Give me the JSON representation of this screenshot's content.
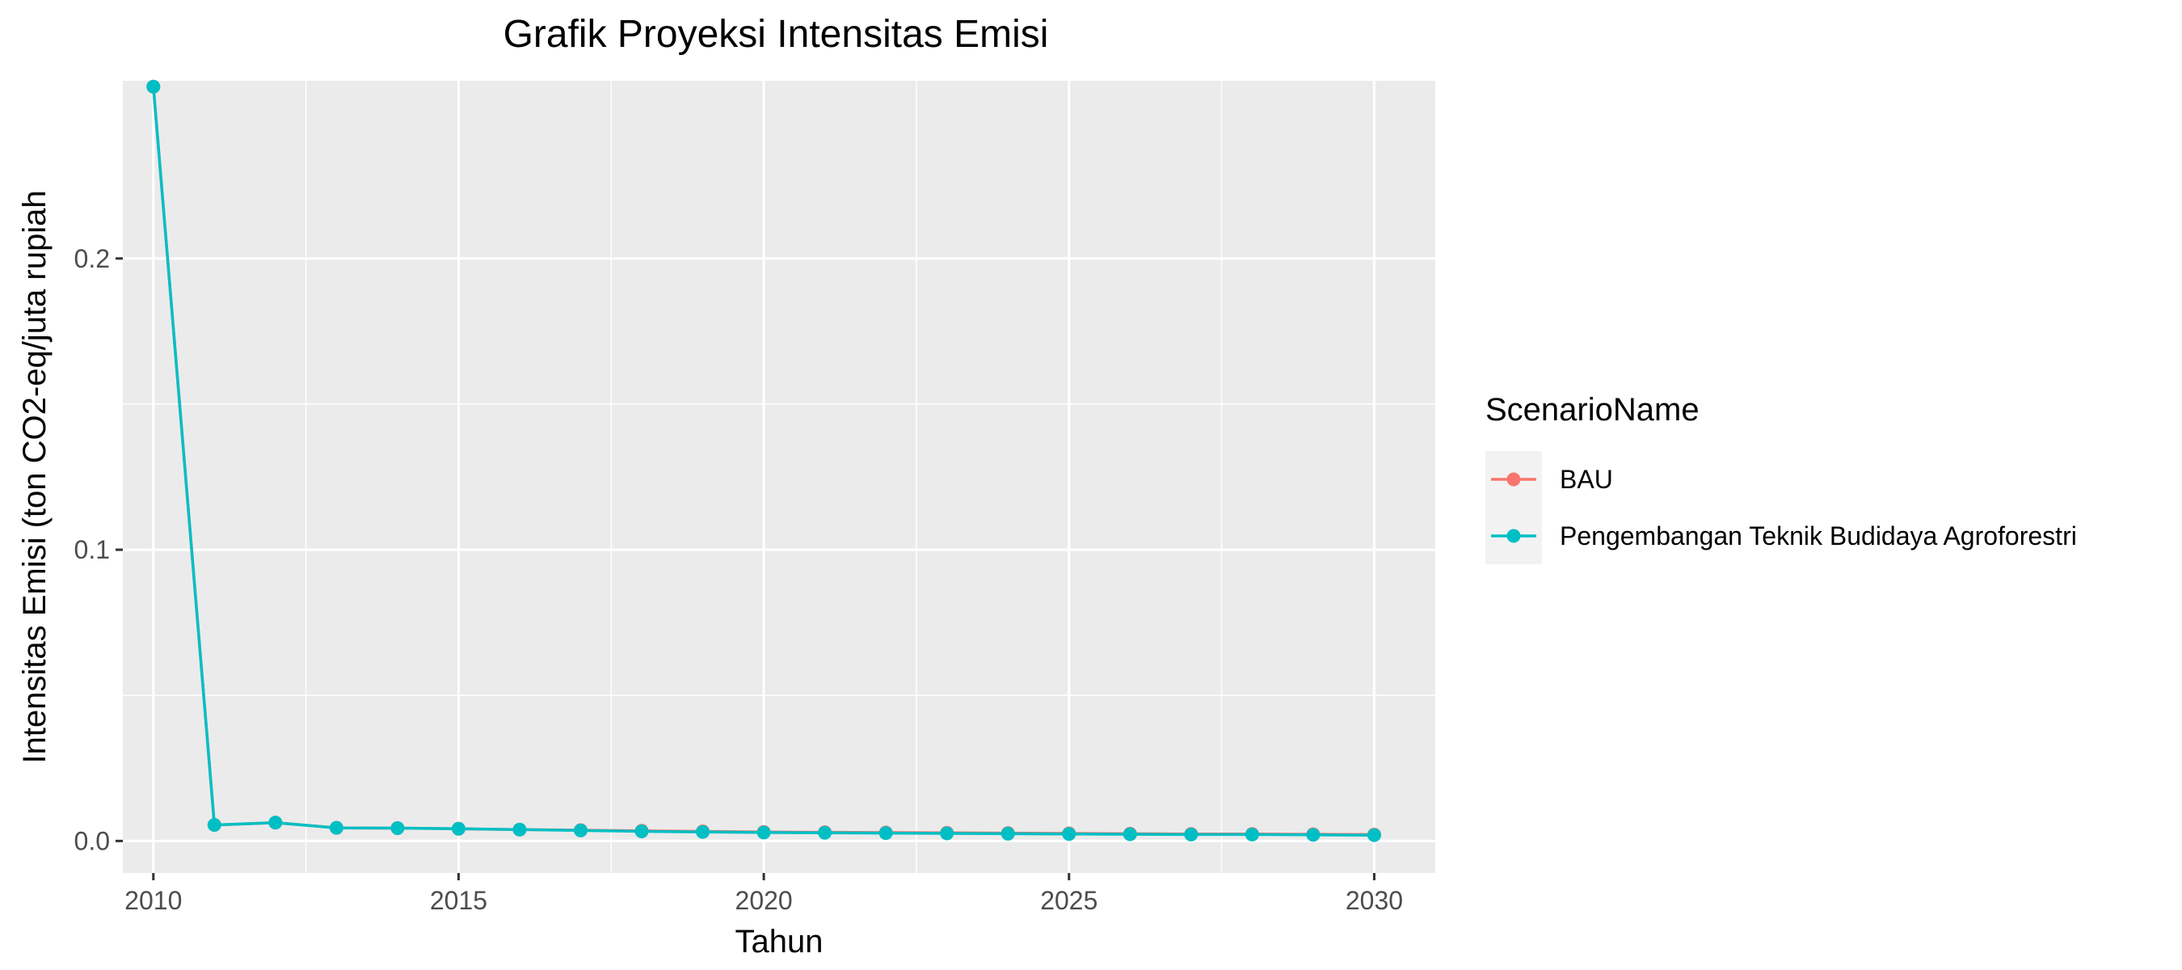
{
  "chart_data": {
    "type": "line",
    "title": "Grafik Proyeksi Intensitas Emisi",
    "xlabel": "Tahun",
    "ylabel": "Intensitas Emisi (ton CO2-eq/juta rupiah",
    "xlim": [
      2009.5,
      2031
    ],
    "ylim": [
      -0.011,
      0.261
    ],
    "x_ticks": [
      2010,
      2015,
      2020,
      2025,
      2030
    ],
    "x_tick_labels": [
      "2010",
      "2015",
      "2020",
      "2025",
      "2030"
    ],
    "y_ticks": [
      0.0,
      0.1,
      0.2
    ],
    "y_tick_labels": [
      "0.0",
      "0.1",
      "0.2"
    ],
    "grid": true,
    "legend": {
      "title": "ScenarioName",
      "placement": "right",
      "entries": [
        "BAU",
        "Pengembangan Teknik Budidaya Agroforestri"
      ]
    },
    "x": [
      2010,
      2011,
      2012,
      2013,
      2014,
      2015,
      2016,
      2017,
      2018,
      2019,
      2020,
      2021,
      2022,
      2023,
      2024,
      2025,
      2026,
      2027,
      2028,
      2029,
      2030
    ],
    "series": [
      {
        "name": "BAU",
        "color": "#F8766D",
        "values": [
          0.259,
          0.0055,
          0.0063,
          0.0045,
          0.0044,
          0.0042,
          0.0039,
          0.0037,
          0.0035,
          0.0033,
          0.0031,
          0.003,
          0.0029,
          0.0028,
          0.0027,
          0.0026,
          0.0025,
          0.0024,
          0.0024,
          0.0023,
          0.0022
        ]
      },
      {
        "name": "Pengembangan Teknik Budidaya Agroforestri",
        "color": "#00BFC4",
        "values": [
          0.259,
          0.0055,
          0.0063,
          0.0045,
          0.0044,
          0.0042,
          0.0039,
          0.0036,
          0.0033,
          0.0031,
          0.0029,
          0.0028,
          0.0027,
          0.0026,
          0.0025,
          0.0024,
          0.0023,
          0.0022,
          0.0022,
          0.0021,
          0.002
        ]
      }
    ]
  }
}
